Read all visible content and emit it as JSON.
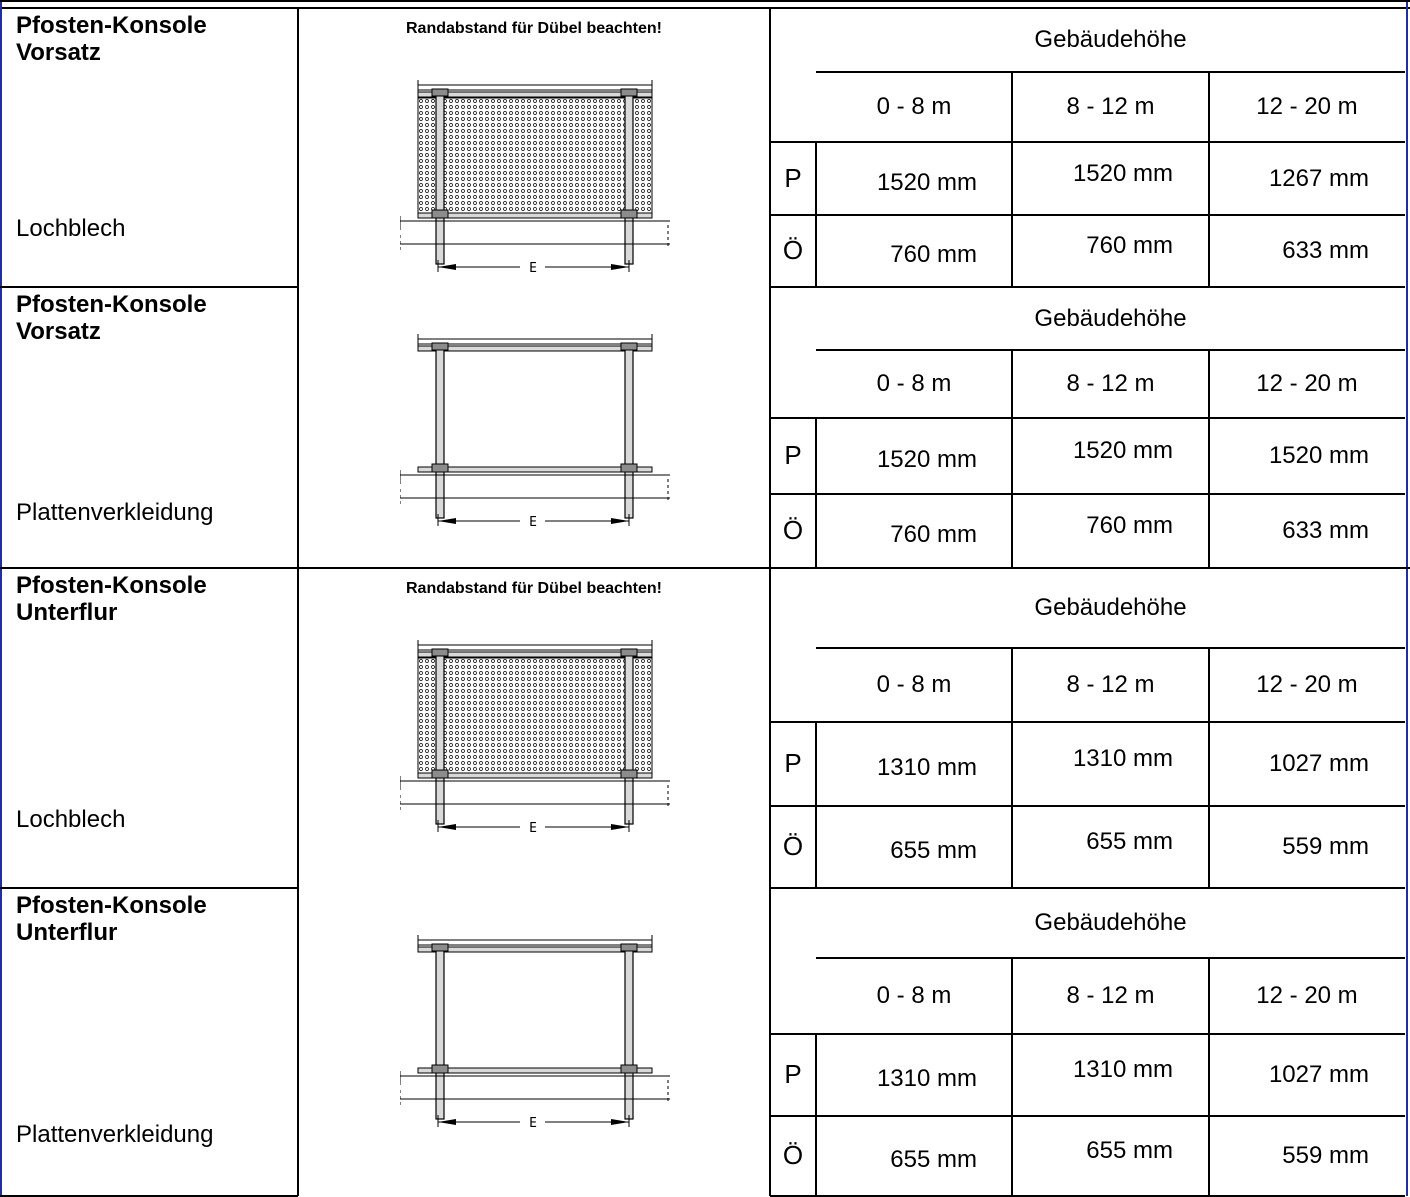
{
  "sections": [
    {
      "title_line1": "Pfosten-Konsole",
      "title_line2": "Vorsatz",
      "material": "Lochblech",
      "note": "Randabstand für Dübel beachten!",
      "header": "Gebäudehöhe",
      "columns": [
        "0 - 8 m",
        "8 - 12 m",
        "12 - 20 m"
      ],
      "rows": [
        {
          "label": "P",
          "values": [
            "1520 mm",
            "1520 mm",
            "1267 mm"
          ]
        },
        {
          "label": "Ö",
          "values": [
            "760 mm",
            "760 mm",
            "633 mm"
          ]
        }
      ],
      "drawing": "perforated",
      "dim_label": "E"
    },
    {
      "title_line1": "Pfosten-Konsole",
      "title_line2": "Vorsatz",
      "material": "Plattenverkleidung",
      "note": "",
      "header": "Gebäudehöhe",
      "columns": [
        "0 - 8 m",
        "8 - 12 m",
        "12 - 20 m"
      ],
      "rows": [
        {
          "label": "P",
          "values": [
            "1520 mm",
            "1520 mm",
            "1520 mm"
          ]
        },
        {
          "label": "Ö",
          "values": [
            "760 mm",
            "760 mm",
            "633 mm"
          ]
        }
      ],
      "drawing": "panel",
      "dim_label": "E"
    },
    {
      "title_line1": "Pfosten-Konsole",
      "title_line2": "Unterflur",
      "material": "Lochblech",
      "note": "Randabstand für Dübel beachten!",
      "header": "Gebäudehöhe",
      "columns": [
        "0 - 8 m",
        "8 - 12 m",
        "12 - 20 m"
      ],
      "rows": [
        {
          "label": "P",
          "values": [
            "1310 mm",
            "1310 mm",
            "1027 mm"
          ]
        },
        {
          "label": "Ö",
          "values": [
            "655 mm",
            "655 mm",
            "559 mm"
          ]
        }
      ],
      "drawing": "perforated",
      "dim_label": "E"
    },
    {
      "title_line1": "Pfosten-Konsole",
      "title_line2": "Unterflur",
      "material": "Plattenverkleidung",
      "note": "",
      "header": "Gebäudehöhe",
      "columns": [
        "0 - 8 m",
        "8 - 12 m",
        "12 - 20 m"
      ],
      "rows": [
        {
          "label": "P",
          "values": [
            "1310 mm",
            "1310 mm",
            "1027 mm"
          ]
        },
        {
          "label": "Ö",
          "values": [
            "655 mm",
            "655 mm",
            "559 mm"
          ]
        }
      ],
      "drawing": "panel",
      "dim_label": "E"
    }
  ],
  "colors": {
    "frame_border": "#1f2f9f",
    "lines": "#000000",
    "drawing_fill": "#d9d9d9",
    "post_cap": "#8c8c8c"
  }
}
